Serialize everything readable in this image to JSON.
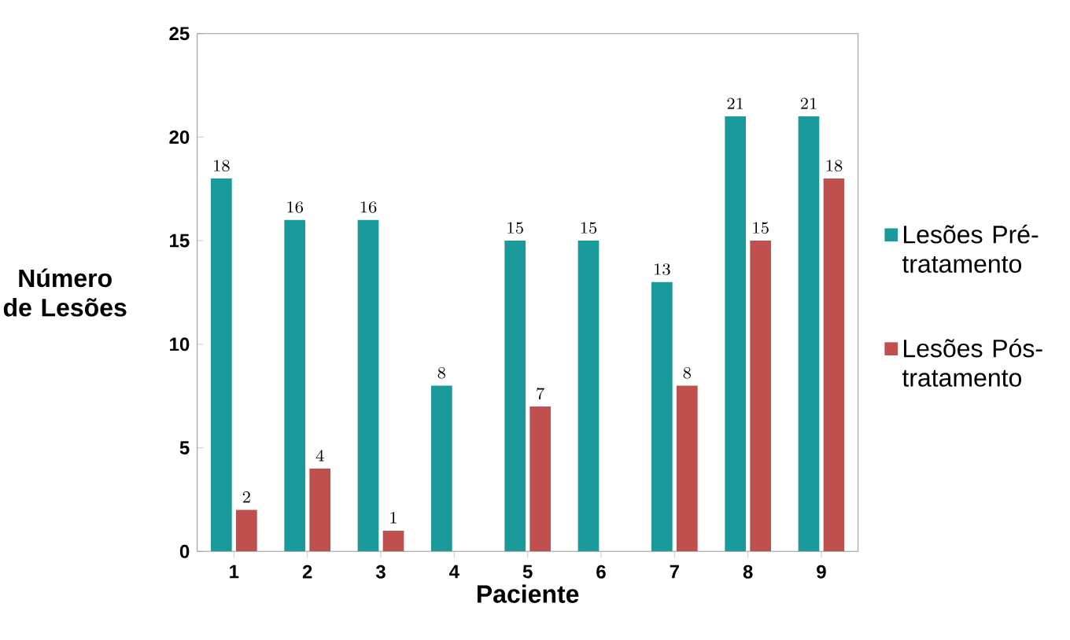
{
  "chart_data": {
    "type": "bar",
    "xlabel": "Paciente",
    "ylabel": "Número de Lesões",
    "categories": [
      "1",
      "2",
      "3",
      "4",
      "5",
      "6",
      "7",
      "8",
      "9"
    ],
    "series": [
      {
        "name": "Lesões Pré-tratamento",
        "color": "#1a9a9a",
        "values": [
          18,
          16,
          16,
          8,
          15,
          15,
          13,
          21,
          21
        ]
      },
      {
        "name": "Lesões Pós-tratamento",
        "color": "#c0504d",
        "values": [
          2,
          4,
          1,
          null,
          7,
          null,
          8,
          15,
          18
        ]
      }
    ],
    "ylim": [
      0,
      25
    ],
    "yticks": [
      0,
      5,
      10,
      15,
      20,
      25
    ],
    "data_labels": true,
    "legend": "right",
    "grid": false
  }
}
